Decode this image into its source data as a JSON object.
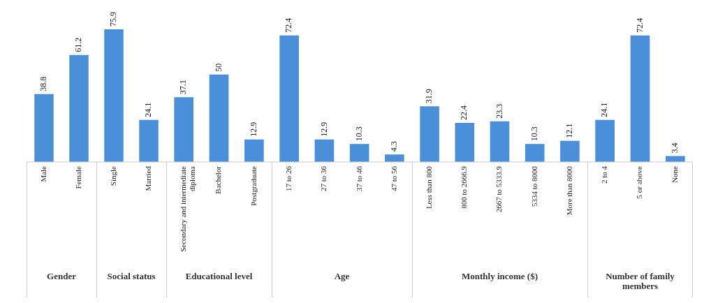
{
  "chart_data": [
    {
      "type": "bar",
      "xlabel": "Gender",
      "categories": [
        "Male",
        "Female"
      ],
      "values": [
        38.8,
        61.2
      ],
      "color": "#4a8fd8",
      "data_labels": true
    },
    {
      "type": "bar",
      "xlabel": "Social status",
      "categories": [
        "Single",
        "Married"
      ],
      "values": [
        75.9,
        24.1
      ],
      "color": "#4a8fd8",
      "data_labels": true
    },
    {
      "type": "bar",
      "xlabel": "Educational level",
      "categories": [
        "Secondary and intermediate diploma",
        "Bachelor",
        "Postgraduate"
      ],
      "values": [
        37.1,
        50,
        12.9
      ],
      "color": "#4a8fd8",
      "data_labels": true
    },
    {
      "type": "bar",
      "xlabel": "Age",
      "categories": [
        "17 to 26",
        "27 to 36",
        "37 to 46",
        "47 to 56"
      ],
      "values": [
        72.4,
        12.9,
        10.3,
        4.3
      ],
      "color": "#4a8fd8",
      "data_labels": true
    },
    {
      "type": "bar",
      "xlabel": "Monthly income ($)",
      "categories": [
        "Less than 800",
        "800 to 2666.9",
        "2667 to 5333.9",
        "5334 to 8000",
        "More than 8000"
      ],
      "values": [
        31.9,
        22.4,
        23.3,
        10.3,
        12.1
      ],
      "color": "#4a8fd8",
      "data_labels": true
    },
    {
      "type": "bar",
      "xlabel": "Number of family members",
      "categories": [
        "2 to 4",
        "5 or above",
        "None"
      ],
      "values": [
        24.1,
        72.4,
        3.4
      ],
      "color": "#4a8fd8",
      "data_labels": true
    }
  ]
}
